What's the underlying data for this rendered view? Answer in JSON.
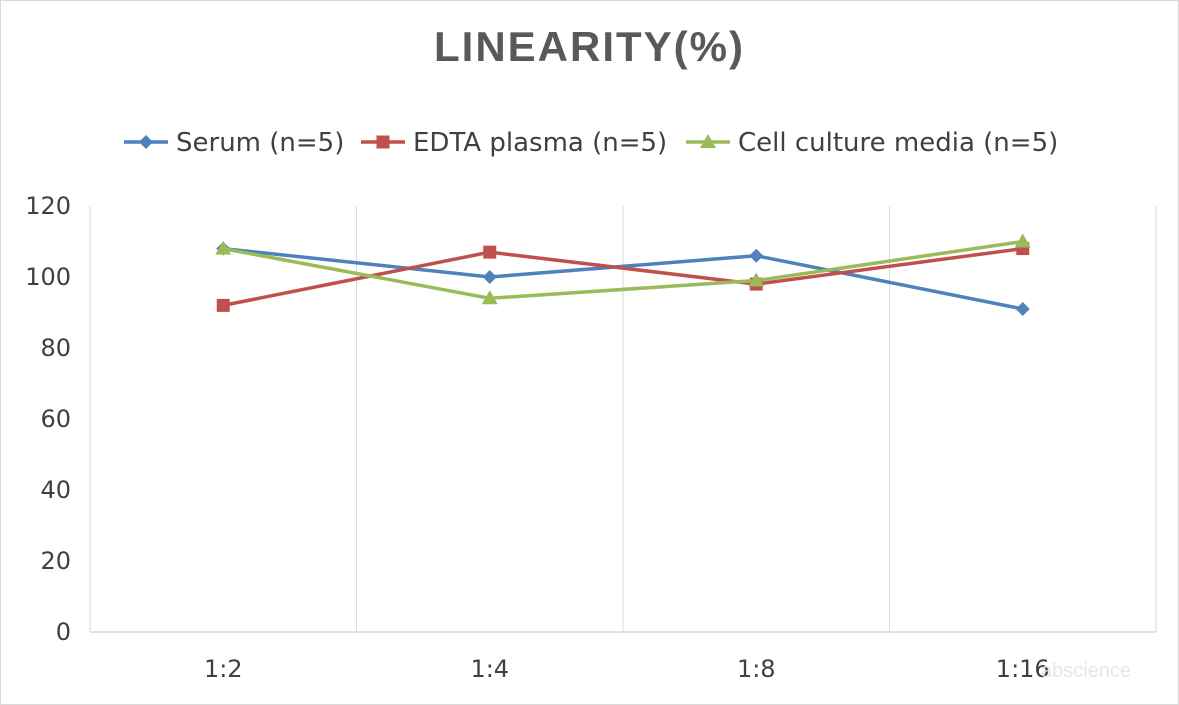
{
  "chart_data": {
    "type": "line",
    "title": "LINEARITY(%)",
    "categories": [
      "1:2",
      "1:4",
      "1:8",
      "1:16"
    ],
    "ylim": [
      0,
      120
    ],
    "yticks": [
      0,
      20,
      40,
      60,
      80,
      100,
      120
    ],
    "grid": "vertical",
    "legend_position": "top",
    "series": [
      {
        "name": "Serum (n=5)",
        "values": [
          108,
          100,
          106,
          91
        ],
        "color": "#4F81BD",
        "marker": "diamond"
      },
      {
        "name": "EDTA plasma (n=5)",
        "values": [
          92,
          107,
          98,
          108
        ],
        "color": "#C0504D",
        "marker": "square"
      },
      {
        "name": "Cell culture media (n=5)",
        "values": [
          108,
          94,
          99,
          110
        ],
        "color": "#9BBB59",
        "marker": "triangle"
      }
    ]
  },
  "watermark": "abscience"
}
